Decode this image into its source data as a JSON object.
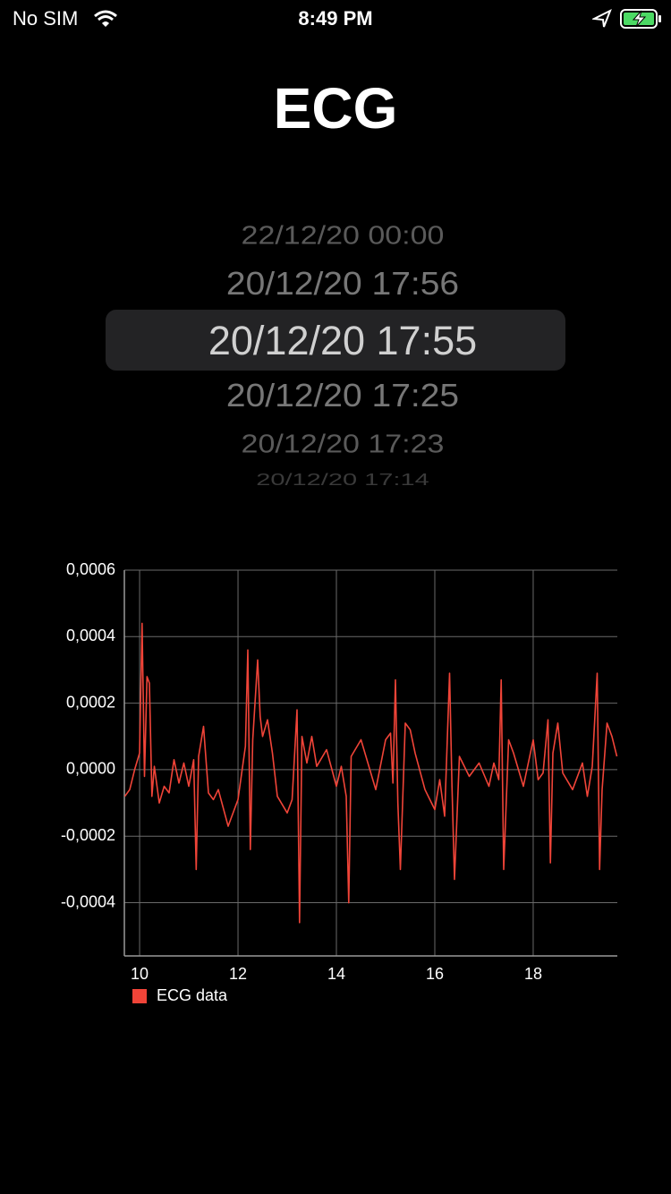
{
  "status_bar": {
    "carrier": "No SIM",
    "time": "8:49 PM"
  },
  "header": {
    "title": "ECG"
  },
  "picker": {
    "items": [
      "22/12/20 00:00",
      "20/12/20 17:56",
      "20/12/20 17:55",
      "20/12/20 17:25",
      "20/12/20 17:23",
      "20/12/20 17:14"
    ]
  },
  "chart_data": {
    "type": "line",
    "x": [
      9.7,
      9.8,
      9.9,
      10.0,
      10.05,
      10.1,
      10.15,
      10.2,
      10.25,
      10.3,
      10.4,
      10.5,
      10.6,
      10.7,
      10.8,
      10.9,
      11.0,
      11.1,
      11.15,
      11.2,
      11.3,
      11.4,
      11.5,
      11.6,
      11.8,
      12.0,
      12.15,
      12.2,
      12.25,
      12.3,
      12.4,
      12.45,
      12.5,
      12.6,
      12.7,
      12.8,
      13.0,
      13.1,
      13.2,
      13.25,
      13.3,
      13.4,
      13.5,
      13.6,
      13.8,
      14.0,
      14.1,
      14.2,
      14.25,
      14.3,
      14.5,
      14.8,
      15.0,
      15.1,
      15.15,
      15.2,
      15.25,
      15.3,
      15.4,
      15.5,
      15.6,
      15.8,
      16.0,
      16.1,
      16.2,
      16.3,
      16.35,
      16.4,
      16.5,
      16.7,
      16.9,
      17.1,
      17.2,
      17.3,
      17.35,
      17.4,
      17.5,
      17.6,
      17.8,
      18.0,
      18.1,
      18.2,
      18.3,
      18.35,
      18.4,
      18.5,
      18.6,
      18.8,
      19.0,
      19.1,
      19.2,
      19.3,
      19.35,
      19.4,
      19.5,
      19.6,
      19.7
    ],
    "series": [
      {
        "name": "ECG data",
        "color": "#f04438",
        "values": [
          -8e-05,
          -6e-05,
          0.0,
          5e-05,
          0.00044,
          -2e-05,
          0.00028,
          0.00026,
          -8e-05,
          1e-05,
          -0.0001,
          -5e-05,
          -7e-05,
          3e-05,
          -4e-05,
          2e-05,
          -5e-05,
          3e-05,
          -0.0003,
          4e-05,
          0.00013,
          -7e-05,
          -9e-05,
          -6e-05,
          -0.00017,
          -9e-05,
          7e-05,
          0.00036,
          -0.00024,
          9e-05,
          0.00033,
          0.00016,
          0.0001,
          0.00015,
          5e-05,
          -8e-05,
          -0.00013,
          -9e-05,
          0.00018,
          -0.00046,
          0.0001,
          2e-05,
          0.0001,
          1e-05,
          6e-05,
          -5e-05,
          1e-05,
          -8e-05,
          -0.0004,
          4e-05,
          9e-05,
          -6e-05,
          9e-05,
          0.00011,
          -4e-05,
          0.00027,
          -0.0001,
          -0.0003,
          0.00014,
          0.00012,
          5e-05,
          -6e-05,
          -0.00012,
          -3e-05,
          -0.00014,
          0.00029,
          -5e-05,
          -0.00033,
          4e-05,
          -2e-05,
          2e-05,
          -5e-05,
          2e-05,
          -3e-05,
          0.00027,
          -0.0003,
          9e-05,
          5e-05,
          -5e-05,
          9e-05,
          -3e-05,
          -1e-05,
          0.00015,
          -0.00028,
          5e-05,
          0.00014,
          -1e-05,
          -6e-05,
          2e-05,
          -8e-05,
          1e-05,
          0.00029,
          -0.0003,
          -6e-05,
          0.00014,
          0.0001,
          4e-05
        ]
      }
    ],
    "xlim": [
      9.69,
      19.71
    ],
    "ylim": [
      -0.00056,
      0.0006
    ],
    "xticks": [
      10,
      12,
      14,
      16,
      18
    ],
    "yticks": [
      {
        "value": 0.0006,
        "label": "0,0006"
      },
      {
        "value": 0.0004,
        "label": "0,0004"
      },
      {
        "value": 0.0002,
        "label": "0,0002"
      },
      {
        "value": 0.0,
        "label": "0,0000"
      },
      {
        "value": -0.0002,
        "label": "-0,0002"
      },
      {
        "value": -0.0004,
        "label": "-0,0004"
      }
    ],
    "grid": true,
    "legend": "bottom-left"
  }
}
